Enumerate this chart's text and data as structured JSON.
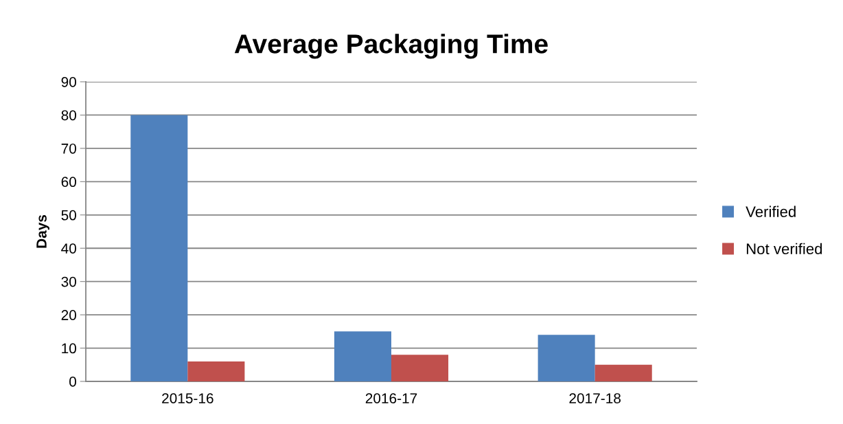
{
  "chart_data": {
    "type": "bar",
    "title": "Average Packaging Time",
    "ylabel": "Days",
    "categories": [
      "2015-16",
      "2016-17",
      "2017-18"
    ],
    "series": [
      {
        "name": "Verified",
        "color": "#4f81bd",
        "values": [
          80,
          15,
          14
        ]
      },
      {
        "name": "Not verified",
        "color": "#c0504d",
        "values": [
          6,
          8,
          5
        ]
      }
    ],
    "ylim": [
      0,
      90
    ],
    "yticks": [
      0,
      10,
      20,
      30,
      40,
      50,
      60,
      70,
      80,
      90
    ],
    "grid": "y",
    "legend": "right"
  }
}
